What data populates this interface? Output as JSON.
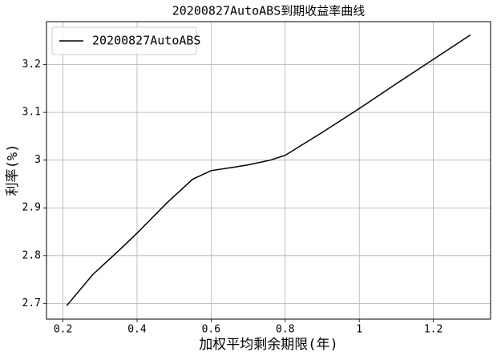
{
  "chart_data": {
    "type": "line",
    "title": "20200827AutoABS到期收益率曲线",
    "x_label": "加权平均剩余期限(年)",
    "y_label": "利率(%)",
    "series": [
      {
        "name": "20200827AutoABS",
        "color": "#000000",
        "x": [
          0.21,
          0.28,
          0.35,
          0.4,
          0.48,
          0.55,
          0.6,
          0.66,
          0.7,
          0.76,
          0.8,
          0.9,
          1.0,
          1.1,
          1.2,
          1.3
        ],
        "values": [
          2.695,
          2.76,
          2.81,
          2.847,
          2.91,
          2.96,
          2.978,
          2.985,
          2.99,
          3.0,
          3.01,
          3.058,
          3.108,
          3.16,
          3.211,
          3.262
        ]
      }
    ],
    "xlim": [
      0.1555,
      1.3545
    ],
    "xticks": [
      0.2,
      0.4,
      0.6,
      0.8,
      1.0,
      1.2
    ],
    "ylim": [
      2.667,
      3.29
    ],
    "yticks": [
      2.7,
      2.8,
      2.9,
      3.0,
      3.1,
      3.2
    ],
    "grid": true,
    "legend": "upper-left"
  }
}
